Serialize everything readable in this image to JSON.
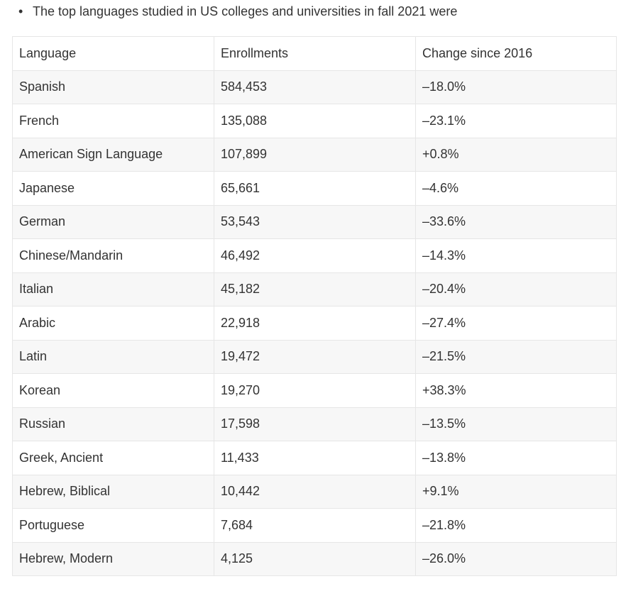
{
  "intro": {
    "bullet": "The top languages studied in US colleges and universities in fall 2021 were"
  },
  "table": {
    "header": [
      "Language",
      "Enrollments",
      "Change since 2016"
    ],
    "rows": [
      [
        "Spanish",
        "584,453",
        "–18.0%"
      ],
      [
        "French",
        "135,088",
        "–23.1%"
      ],
      [
        "American Sign Language",
        "107,899",
        "+0.8%"
      ],
      [
        "Japanese",
        "65,661",
        "–4.6%"
      ],
      [
        "German",
        "53,543",
        "–33.6%"
      ],
      [
        "Chinese/Mandarin",
        "46,492",
        "–14.3%"
      ],
      [
        "Italian",
        "45,182",
        "–20.4%"
      ],
      [
        "Arabic",
        "22,918",
        "–27.4%"
      ],
      [
        "Latin",
        "19,472",
        "–21.5%"
      ],
      [
        "Korean",
        "19,270",
        "+38.3%"
      ],
      [
        "Russian",
        "17,598",
        "–13.5%"
      ],
      [
        "Greek, Ancient",
        "11,433",
        "–13.8%"
      ],
      [
        "Hebrew, Biblical",
        "10,442",
        "+9.1%"
      ],
      [
        "Portuguese",
        "7,684",
        "–21.8%"
      ],
      [
        "Hebrew, Modern",
        "4,125",
        "–26.0%"
      ]
    ]
  }
}
